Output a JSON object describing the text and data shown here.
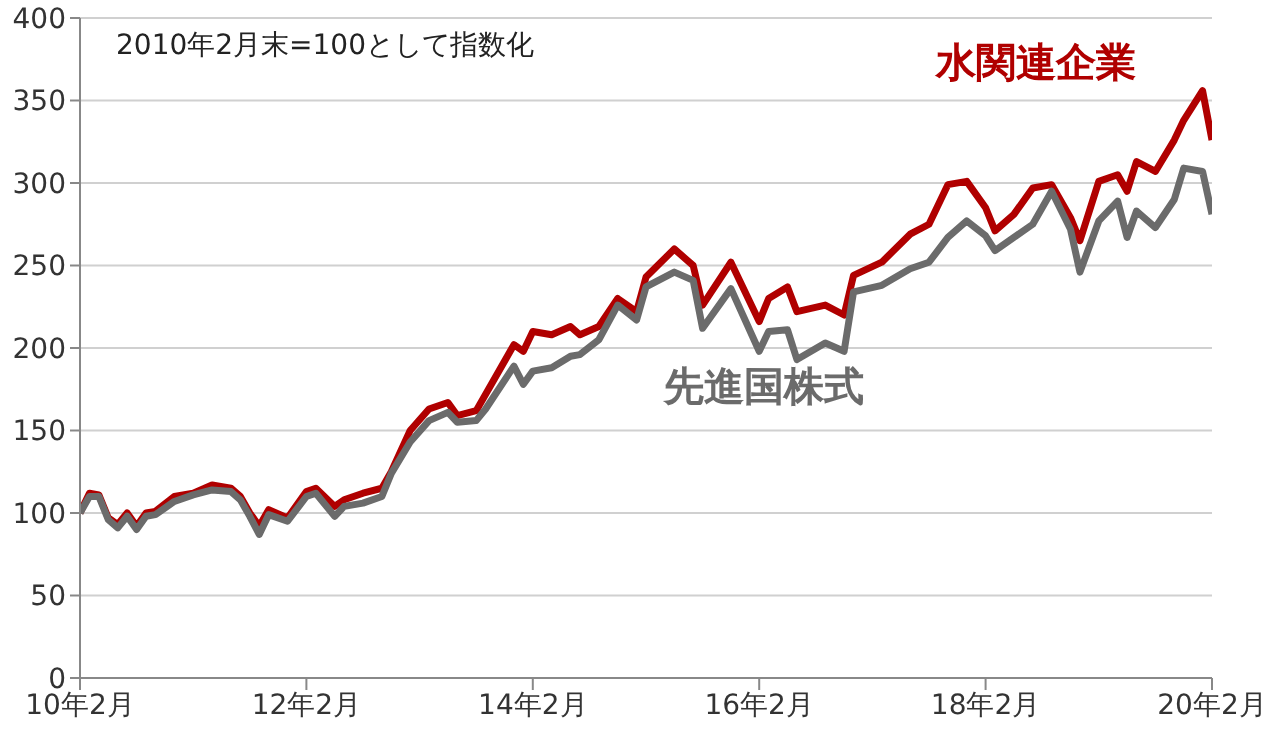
{
  "chart_data": {
    "type": "line",
    "annotations": [
      "2010年2月末=100として指数化"
    ],
    "x": [
      "2010-02",
      "2010-03",
      "2010-04",
      "2010-05",
      "2010-06",
      "2010-07",
      "2010-08",
      "2010-09",
      "2010-10",
      "2010-12",
      "2011-02",
      "2011-04",
      "2011-06",
      "2011-07",
      "2011-08",
      "2011-09",
      "2011-10",
      "2011-12",
      "2012-02",
      "2012-03",
      "2012-05",
      "2012-06",
      "2012-08",
      "2012-10",
      "2012-11",
      "2013-01",
      "2013-03",
      "2013-05",
      "2013-06",
      "2013-08",
      "2013-09",
      "2013-12",
      "2014-01",
      "2014-02",
      "2014-04",
      "2014-06",
      "2014-07",
      "2014-09",
      "2014-11",
      "2015-01",
      "2015-02",
      "2015-05",
      "2015-07",
      "2015-08",
      "2015-11",
      "2016-02",
      "2016-03",
      "2016-05",
      "2016-06",
      "2016-09",
      "2016-11",
      "2016-12",
      "2017-03",
      "2017-06",
      "2017-08",
      "2017-10",
      "2017-12",
      "2018-02",
      "2018-03",
      "2018-05",
      "2018-07",
      "2018-09",
      "2018-11",
      "2018-12",
      "2019-02",
      "2019-04",
      "2019-05",
      "2019-06",
      "2019-08",
      "2019-10",
      "2019-11",
      "2020-01",
      "2020-02"
    ],
    "series": [
      {
        "name": "水関連企業",
        "color": "#b00000",
        "values": [
          100,
          112,
          111,
          97,
          93,
          100,
          92,
          100,
          101,
          110,
          112,
          117,
          115,
          110,
          100,
          92,
          102,
          97,
          113,
          115,
          104,
          108,
          112,
          115,
          125,
          150,
          163,
          167,
          159,
          162,
          172,
          202,
          198,
          210,
          208,
          213,
          208,
          213,
          230,
          222,
          243,
          260,
          250,
          226,
          252,
          216,
          230,
          237,
          222,
          226,
          220,
          244,
          252,
          269,
          275,
          299,
          301,
          285,
          271,
          281,
          297,
          299,
          279,
          265,
          301,
          305,
          295,
          313,
          307,
          326,
          338,
          356,
          326
        ]
      },
      {
        "name": "先進国株式",
        "color": "#6b6b6b",
        "values": [
          100,
          110,
          110,
          96,
          91,
          98,
          90,
          98,
          99,
          107,
          111,
          114,
          113,
          108,
          98,
          87,
          99,
          95,
          110,
          112,
          98,
          104,
          106,
          110,
          124,
          143,
          156,
          161,
          155,
          156,
          163,
          189,
          178,
          186,
          188,
          195,
          196,
          205,
          226,
          217,
          237,
          246,
          241,
          212,
          236,
          198,
          210,
          211,
          193,
          203,
          198,
          234,
          238,
          248,
          252,
          267,
          277,
          268,
          259,
          267,
          275,
          295,
          272,
          246,
          277,
          289,
          267,
          283,
          273,
          290,
          309,
          307,
          281
        ]
      }
    ],
    "xlim": [
      "2010-02",
      "2020-02"
    ],
    "xticks": [
      {
        "value": "2010-02",
        "label": "10年2月"
      },
      {
        "value": "2012-02",
        "label": "12年2月"
      },
      {
        "value": "2014-02",
        "label": "14年2月"
      },
      {
        "value": "2016-02",
        "label": "16年2月"
      },
      {
        "value": "2018-02",
        "label": "18年2月"
      },
      {
        "value": "2020-02",
        "label": "20年2月"
      }
    ],
    "ylim": [
      0,
      400
    ],
    "yticks": [
      0,
      50,
      100,
      150,
      200,
      250,
      300,
      350,
      400
    ],
    "grid": "y",
    "marker": "none",
    "line_style": "solid"
  }
}
